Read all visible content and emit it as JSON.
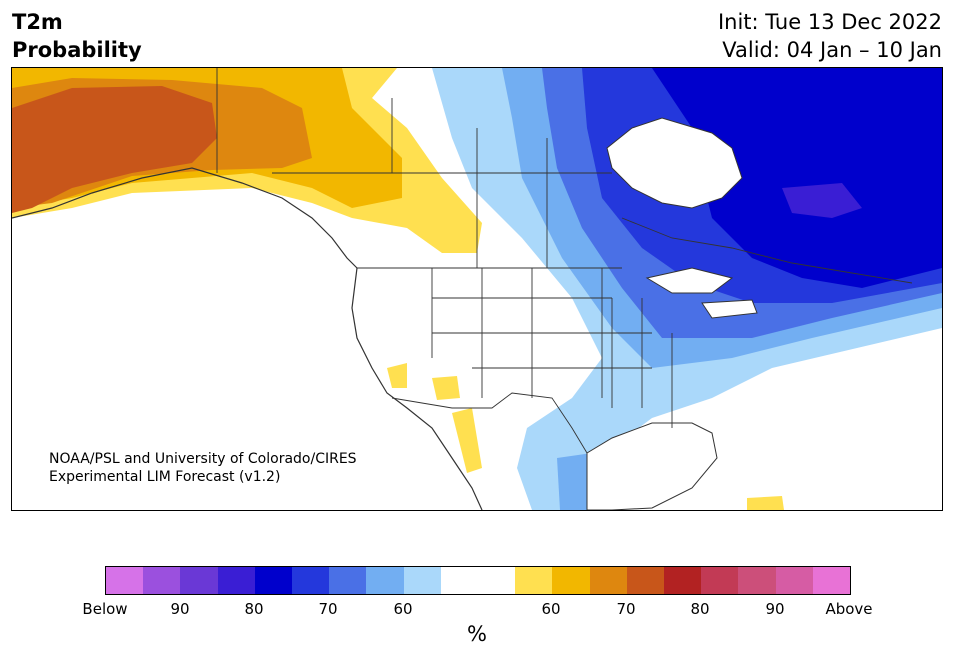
{
  "header": {
    "variable": "T2m",
    "product": "Probability",
    "init": "Init: Tue 13 Dec 2022",
    "valid": "Valid: 04 Jan – 10 Jan"
  },
  "map": {
    "region": "North America",
    "credit_line1": "NOAA/PSL and University of Colorado/CIRES",
    "credit_line2": "Experimental LIM Forecast (v1.2)",
    "land_color": "#ffffff",
    "border_color": "#333333"
  },
  "colorbar": {
    "unit": "%",
    "colors": [
      "#d672e8",
      "#9b50de",
      "#6a38d6",
      "#3a1ed4",
      "#0000cc",
      "#2438dc",
      "#4a70e6",
      "#72aef2",
      "#aad8fa",
      "#ffffff",
      "#ffffff",
      "#ffe050",
      "#f2b700",
      "#de870f",
      "#c8561a",
      "#b22222",
      "#c23a55",
      "#cc4f7a",
      "#d65ca4",
      "#e872d6"
    ],
    "ticks": [
      {
        "label": "Below"
      },
      {
        "label": "90"
      },
      {
        "label": "80"
      },
      {
        "label": "70"
      },
      {
        "label": "60"
      },
      {
        "label": "60"
      },
      {
        "label": "70"
      },
      {
        "label": "80"
      },
      {
        "label": "90"
      },
      {
        "label": "Above"
      }
    ]
  }
}
